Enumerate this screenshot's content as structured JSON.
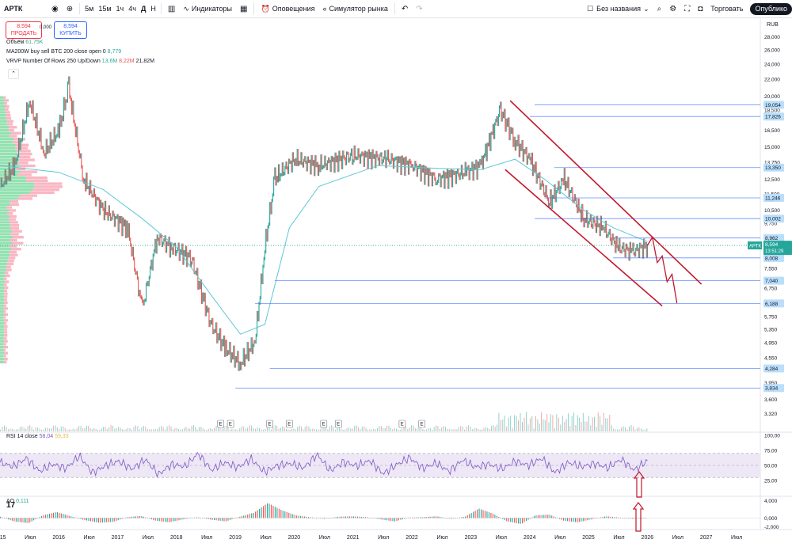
{
  "toolbar": {
    "symbol": "АРТК",
    "timeframes": [
      "5м",
      "15м",
      "1ч",
      "4ч",
      "Д",
      "Н"
    ],
    "indicators_label": "Индикаторы",
    "alerts_label": "Оповещения",
    "replay_label": "Симулятор рынка",
    "layout_name": "Без названия",
    "trade_label": "Торговать",
    "publish_label": "Опублико",
    "active_timeframe": "Д"
  },
  "legend": {
    "sell_price": "8,594",
    "sell_label": "ПРОДАТЬ",
    "spread": "0,000",
    "buy_price": "8,594",
    "buy_label": "КУПИТЬ",
    "volume_label": "Объём",
    "volume_value": "61,75K",
    "ma_label": "MA200W buy sell BTC 200 close open 0",
    "ma_value": "8,779",
    "vrvp_label": "VRVP Number Of Rows 250 Up/Down",
    "vrvp_up": "13,6M",
    "vrvp_down": "8,22M",
    "vrvp_total": "21,82M",
    "rsi_label": "RSI 14 close",
    "rsi_value": "58,04",
    "rsi_ma": "59,33",
    "ao_label": "AO",
    "ao_value": "0,111"
  },
  "colors": {
    "up": "#26a69a",
    "down": "#ef5350",
    "ma": "#5ec7d6",
    "level": "#2962ff",
    "channel": "#c2182b",
    "vp_up": "#79d99e",
    "vp_down": "#f8a5b4",
    "rsi": "#7e57c2",
    "rsi_band": "#ede7f6",
    "tag_bg": "#bbdefb"
  },
  "chart_data": [
    {
      "type": "line",
      "title": "АРТК",
      "currency": "RUB",
      "scale": "log",
      "ylim": [
        3.0,
        30.0
      ],
      "y_ticks": [
        "28,000",
        "26,000",
        "24,000",
        "22,000",
        "20,000",
        "18,500",
        "16,500",
        "15,000",
        "13,750",
        "12,500",
        "11,500",
        "10,500",
        "9,750",
        "8,500",
        "7,550",
        "6,750",
        "6,250",
        "5,750",
        "5,350",
        "4,950",
        "4,550",
        "4,250",
        "3,950",
        "3,600",
        "3,320"
      ],
      "x_ticks": [
        "2015",
        "Июл",
        "2016",
        "Июл",
        "2017",
        "Июл",
        "2018",
        "Июл",
        "2019",
        "Июл",
        "2020",
        "Июл",
        "2021",
        "Июл",
        "2022",
        "Июл",
        "2023",
        "Июл",
        "2024",
        "Июл",
        "2025",
        "Июл",
        "2026",
        "Июл",
        "2027",
        "Июл"
      ],
      "x_range": [
        "2015-01",
        "2027-12"
      ],
      "series": [
        {
          "values_by_date": [
            [
              "2015-01",
              12.0
            ],
            [
              "2015-04",
              13.5
            ],
            [
              "2015-07",
              19.5
            ],
            [
              "2015-10",
              14.5
            ],
            [
              "2016-01",
              16.5
            ],
            [
              "2016-03",
              21.0
            ],
            [
              "2016-06",
              12.5
            ],
            [
              "2016-10",
              10.5
            ],
            [
              "2017-03",
              9.5
            ],
            [
              "2017-06",
              6.0
            ],
            [
              "2017-09",
              9.0
            ],
            [
              "2017-12",
              8.5
            ],
            [
              "2018-04",
              8.0
            ],
            [
              "2018-08",
              5.5
            ],
            [
              "2018-11",
              4.8
            ],
            [
              "2019-02",
              4.4
            ],
            [
              "2019-05",
              5.0
            ],
            [
              "2019-07",
              8.5
            ],
            [
              "2019-09",
              12.5
            ],
            [
              "2020-01",
              14.0
            ],
            [
              "2020-06",
              13.5
            ],
            [
              "2021-01",
              14.3
            ],
            [
              "2021-08",
              14.0
            ],
            [
              "2022-01",
              13.5
            ],
            [
              "2022-06",
              12.5
            ],
            [
              "2022-12",
              13.0
            ],
            [
              "2023-03",
              13.5
            ],
            [
              "2023-07",
              18.5
            ],
            [
              "2023-10",
              15.5
            ],
            [
              "2024-01",
              14.0
            ],
            [
              "2024-05",
              11.0
            ],
            [
              "2024-08",
              12.5
            ],
            [
              "2024-12",
              10.0
            ],
            [
              "2025-04",
              9.5
            ],
            [
              "2025-07",
              8.5
            ],
            [
              "2025-10",
              8.3
            ],
            [
              "2026-01",
              8.59
            ]
          ]
        },
        {
          "name": "MA200W buy sell BTC 200 close open 0",
          "values_by_date": [
            [
              "2015-01",
              13.5
            ],
            [
              "2016-01",
              13.0
            ],
            [
              "2016-10",
              11.8
            ],
            [
              "2017-06",
              10.0
            ],
            [
              "2018-01",
              8.5
            ],
            [
              "2018-08",
              6.5
            ],
            [
              "2019-02",
              5.2
            ],
            [
              "2019-07",
              5.5
            ],
            [
              "2019-12",
              9.5
            ],
            [
              "2020-06",
              12.0
            ],
            [
              "2021-06",
              13.5
            ],
            [
              "2022-06",
              13.3
            ],
            [
              "2023-03",
              13.2
            ],
            [
              "2023-10",
              14.0
            ],
            [
              "2024-04",
              12.5
            ],
            [
              "2024-12",
              10.5
            ],
            [
              "2025-06",
              9.5
            ],
            [
              "2026-01",
              8.78
            ]
          ]
        }
      ],
      "levels": [
        "19,054",
        "17,826",
        "13,350",
        "11,246",
        "10,002",
        "8,962",
        "8,008",
        "7,040",
        "6,188",
        "4,284",
        "3,834"
      ],
      "current_price": "8,594",
      "countdown": "13:51:29",
      "earnings_markers": [
        "E",
        "E",
        "E",
        "E",
        "E",
        "E",
        "E",
        "E"
      ]
    },
    {
      "type": "line",
      "name": "RSI 14 close",
      "ylim": [
        0,
        100
      ],
      "y_ticks": [
        "100,00",
        "75,00",
        "50,00",
        "25,00"
      ],
      "values": [
        55,
        48,
        62,
        40,
        52,
        45,
        66,
        38,
        50,
        57,
        44,
        60,
        35,
        52,
        48,
        70,
        42,
        55,
        47,
        61,
        39,
        50,
        53,
        46,
        68,
        41,
        56,
        49,
        58,
        36,
        51,
        63,
        45,
        54,
        40,
        59,
        47,
        52,
        44,
        57,
        50,
        62,
        38,
        55,
        48,
        53,
        46,
        60,
        42,
        58
      ]
    },
    {
      "type": "bar",
      "name": "AO",
      "y_ticks": [
        "4,000",
        "0,000",
        "-2,000"
      ],
      "values": [
        0.3,
        -0.8,
        -1.2,
        0.6,
        1.4,
        0.4,
        -0.5,
        -1.1,
        -0.9,
        0.2,
        0.5,
        -0.6,
        -1.0,
        -0.3,
        0.2,
        -0.4,
        -0.8,
        0.3,
        1.2,
        3.5,
        1.8,
        0.6,
        0.2,
        -0.2,
        0.3,
        0.4,
        0.2,
        -0.3,
        -0.8,
        0.1,
        0.2,
        0.4,
        -0.2,
        0.3,
        2.2,
        1.0,
        -0.8,
        -1.4,
        0.6,
        0.8,
        -0.6,
        -1.0,
        -0.3,
        0.4,
        0.1,
        -0.2,
        0.1
      ]
    }
  ]
}
